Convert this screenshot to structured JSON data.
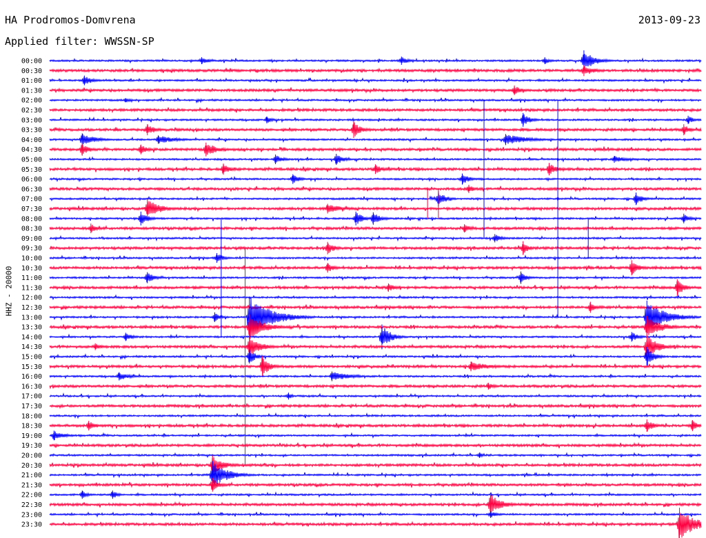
{
  "header": {
    "station": "HA Prodromos-Domvrena",
    "date": "2013-09-23",
    "filter": "Applied filter: WWSSN-SP"
  },
  "channel_label": "HHZ - 20000",
  "chart_data": {
    "type": "line",
    "description_type": "helicorder seismogram",
    "colors": {
      "even_rows": "#0000ff",
      "odd_rows": "#ff0040"
    },
    "grid": false,
    "time_labels": [
      "00:00",
      "00:30",
      "01:00",
      "01:30",
      "02:00",
      "02:30",
      "03:00",
      "03:30",
      "04:00",
      "04:30",
      "05:00",
      "05:30",
      "06:00",
      "06:30",
      "07:00",
      "07:30",
      "08:00",
      "08:30",
      "09:00",
      "09:30",
      "10:00",
      "10:30",
      "11:00",
      "11:30",
      "12:00",
      "12:30",
      "13:00",
      "13:30",
      "14:00",
      "14:30",
      "15:00",
      "15:30",
      "16:00",
      "16:30",
      "17:00",
      "17:30",
      "18:00",
      "18:30",
      "19:00",
      "19:30",
      "20:00",
      "20:30",
      "21:00",
      "21:30",
      "22:00",
      "22:30",
      "23:00",
      "23:30"
    ],
    "minutes_per_line": 30,
    "events": [
      {
        "row": 0,
        "minute": 7.0,
        "amplitude": 5,
        "duration": 1.2
      },
      {
        "row": 0,
        "minute": 16.2,
        "amplitude": 6,
        "duration": 1.0
      },
      {
        "row": 0,
        "minute": 22.8,
        "amplitude": 5,
        "duration": 0.8
      },
      {
        "row": 0,
        "minute": 24.6,
        "amplitude": 15,
        "duration": 1.5
      },
      {
        "row": 1,
        "minute": 24.6,
        "amplitude": 8,
        "duration": 1.5
      },
      {
        "row": 2,
        "minute": 1.6,
        "amplitude": 7,
        "duration": 1.2
      },
      {
        "row": 3,
        "minute": 21.4,
        "amplitude": 7,
        "duration": 1.0
      },
      {
        "row": 4,
        "minute": 3.5,
        "amplitude": 3,
        "duration": 1.0
      },
      {
        "row": 6,
        "minute": 10.0,
        "amplitude": 5,
        "duration": 0.8
      },
      {
        "row": 6,
        "minute": 21.8,
        "amplitude": 10,
        "duration": 1.0
      },
      {
        "row": 6,
        "minute": 29.4,
        "amplitude": 6,
        "duration": 0.8
      },
      {
        "row": 7,
        "minute": 4.5,
        "amplitude": 8,
        "duration": 1.2
      },
      {
        "row": 7,
        "minute": 14.0,
        "amplitude": 12,
        "duration": 1.0
      },
      {
        "row": 7,
        "minute": 29.2,
        "amplitude": 8,
        "duration": 0.8
      },
      {
        "row": 8,
        "minute": 1.5,
        "amplitude": 9,
        "duration": 1.8
      },
      {
        "row": 8,
        "minute": 5.0,
        "amplitude": 6,
        "duration": 2.5
      },
      {
        "row": 8,
        "minute": 21.0,
        "amplitude": 8,
        "duration": 3.0
      },
      {
        "row": 9,
        "minute": 1.5,
        "amplitude": 9,
        "duration": 1.0
      },
      {
        "row": 9,
        "minute": 4.2,
        "amplitude": 7,
        "duration": 1.0
      },
      {
        "row": 9,
        "minute": 7.2,
        "amplitude": 10,
        "duration": 1.6
      },
      {
        "row": 10,
        "minute": 10.4,
        "amplitude": 7,
        "duration": 1.0
      },
      {
        "row": 10,
        "minute": 13.2,
        "amplitude": 8,
        "duration": 1.0
      },
      {
        "row": 10,
        "minute": 26.0,
        "amplitude": 5,
        "duration": 2.0
      },
      {
        "row": 11,
        "minute": 8.0,
        "amplitude": 8,
        "duration": 1.0
      },
      {
        "row": 11,
        "minute": 15.0,
        "amplitude": 7,
        "duration": 1.0
      },
      {
        "row": 11,
        "minute": 23.0,
        "amplitude": 9,
        "duration": 1.2
      },
      {
        "row": 12,
        "minute": 11.2,
        "amplitude": 7,
        "duration": 1.0
      },
      {
        "row": 12,
        "minute": 19.0,
        "amplitude": 8,
        "duration": 1.0
      },
      {
        "row": 13,
        "minute": 19.3,
        "amplitude": 6,
        "duration": 0.8
      },
      {
        "row": 14,
        "minute": 17.9,
        "amplitude": 11,
        "duration": 1.0
      },
      {
        "row": 14,
        "minute": 27.0,
        "amplitude": 9,
        "duration": 1.0
      },
      {
        "row": 15,
        "minute": 4.5,
        "amplitude": 14,
        "duration": 1.8
      },
      {
        "row": 15,
        "minute": 12.8,
        "amplitude": 7,
        "duration": 2.0
      },
      {
        "row": 16,
        "minute": 4.2,
        "amplitude": 10,
        "duration": 1.0
      },
      {
        "row": 16,
        "minute": 14.1,
        "amplitude": 10,
        "duration": 1.0
      },
      {
        "row": 16,
        "minute": 14.9,
        "amplitude": 9,
        "duration": 1.0
      },
      {
        "row": 16,
        "minute": 29.2,
        "amplitude": 7,
        "duration": 0.8
      },
      {
        "row": 17,
        "minute": 1.9,
        "amplitude": 7,
        "duration": 0.8
      },
      {
        "row": 17,
        "minute": 19.1,
        "amplitude": 6,
        "duration": 1.0
      },
      {
        "row": 18,
        "minute": 20.5,
        "amplitude": 6,
        "duration": 1.0
      },
      {
        "row": 19,
        "minute": 12.8,
        "amplitude": 9,
        "duration": 1.0
      },
      {
        "row": 19,
        "minute": 21.8,
        "amplitude": 10,
        "duration": 0.8
      },
      {
        "row": 20,
        "minute": 7.7,
        "amplitude": 7,
        "duration": 1.0
      },
      {
        "row": 21,
        "minute": 12.8,
        "amplitude": 7,
        "duration": 1.0
      },
      {
        "row": 21,
        "minute": 26.8,
        "amplitude": 11,
        "duration": 1.0
      },
      {
        "row": 22,
        "minute": 4.5,
        "amplitude": 8,
        "duration": 1.0
      },
      {
        "row": 22,
        "minute": 21.7,
        "amplitude": 9,
        "duration": 0.8
      },
      {
        "row": 23,
        "minute": 15.6,
        "amplitude": 6,
        "duration": 1.0
      },
      {
        "row": 23,
        "minute": 28.9,
        "amplitude": 12,
        "duration": 1.0
      },
      {
        "row": 25,
        "minute": 24.9,
        "amplitude": 8,
        "duration": 0.8
      },
      {
        "row": 26,
        "minute": 7.6,
        "amplitude": 7,
        "duration": 0.8
      },
      {
        "row": 26,
        "minute": 9.2,
        "amplitude": 30,
        "duration": 3.0
      },
      {
        "row": 26,
        "minute": 27.5,
        "amplitude": 24,
        "duration": 2.5
      },
      {
        "row": 27,
        "minute": 9.2,
        "amplitude": 18,
        "duration": 2.0
      },
      {
        "row": 27,
        "minute": 27.5,
        "amplitude": 16,
        "duration": 2.0
      },
      {
        "row": 28,
        "minute": 3.5,
        "amplitude": 6,
        "duration": 1.0
      },
      {
        "row": 28,
        "minute": 15.3,
        "amplitude": 18,
        "duration": 1.2
      },
      {
        "row": 28,
        "minute": 26.8,
        "amplitude": 7,
        "duration": 1.0
      },
      {
        "row": 29,
        "minute": 2.1,
        "amplitude": 5,
        "duration": 1.0
      },
      {
        "row": 29,
        "minute": 9.2,
        "amplitude": 16,
        "duration": 1.5
      },
      {
        "row": 29,
        "minute": 27.5,
        "amplitude": 18,
        "duration": 1.5
      },
      {
        "row": 30,
        "minute": 9.2,
        "amplitude": 10,
        "duration": 1.0
      },
      {
        "row": 30,
        "minute": 27.5,
        "amplitude": 14,
        "duration": 1.0
      },
      {
        "row": 31,
        "minute": 9.8,
        "amplitude": 15,
        "duration": 1.0
      },
      {
        "row": 31,
        "minute": 19.4,
        "amplitude": 7,
        "duration": 2.5
      },
      {
        "row": 32,
        "minute": 3.2,
        "amplitude": 6,
        "duration": 1.5
      },
      {
        "row": 32,
        "minute": 13.0,
        "amplitude": 7,
        "duration": 2.5
      },
      {
        "row": 33,
        "minute": 20.2,
        "amplitude": 5,
        "duration": 1.0
      },
      {
        "row": 34,
        "minute": 11.0,
        "amplitude": 5,
        "duration": 0.5
      },
      {
        "row": 37,
        "minute": 1.8,
        "amplitude": 7,
        "duration": 1.0
      },
      {
        "row": 37,
        "minute": 27.5,
        "amplitude": 9,
        "duration": 1.0
      },
      {
        "row": 37,
        "minute": 29.6,
        "amplitude": 8,
        "duration": 0.8
      },
      {
        "row": 38,
        "minute": 0.2,
        "amplitude": 7,
        "duration": 1.5
      },
      {
        "row": 40,
        "minute": 19.8,
        "amplitude": 4,
        "duration": 0.6
      },
      {
        "row": 41,
        "minute": 7.5,
        "amplitude": 14,
        "duration": 1.5
      },
      {
        "row": 42,
        "minute": 7.5,
        "amplitude": 20,
        "duration": 2.0
      },
      {
        "row": 43,
        "minute": 7.5,
        "amplitude": 10,
        "duration": 1.0
      },
      {
        "row": 44,
        "minute": 1.5,
        "amplitude": 6,
        "duration": 0.8
      },
      {
        "row": 44,
        "minute": 2.9,
        "amplitude": 6,
        "duration": 0.8
      },
      {
        "row": 45,
        "minute": 20.3,
        "amplitude": 15,
        "duration": 1.5
      },
      {
        "row": 46,
        "minute": 20.3,
        "amplitude": 5,
        "duration": 1.0
      },
      {
        "row": 47,
        "minute": 29.0,
        "amplitude": 24,
        "duration": 2.0
      }
    ],
    "spikes": [
      {
        "row": 4,
        "minute": 20.0,
        "top_row": 4,
        "bottom_row": 18
      },
      {
        "row": 4,
        "minute": 23.4,
        "top_row": 4,
        "bottom_row": 26
      },
      {
        "row": 13,
        "minute": 17.4,
        "top_row": 13,
        "bottom_row": 16
      },
      {
        "row": 13,
        "minute": 17.9,
        "top_row": 13,
        "bottom_row": 16
      },
      {
        "row": 16,
        "minute": 7.9,
        "top_row": 16,
        "bottom_row": 28
      },
      {
        "row": 16,
        "minute": 24.8,
        "top_row": 16,
        "bottom_row": 20
      },
      {
        "row": 19,
        "minute": 9.0,
        "top_row": 19,
        "bottom_row": 41
      }
    ]
  }
}
